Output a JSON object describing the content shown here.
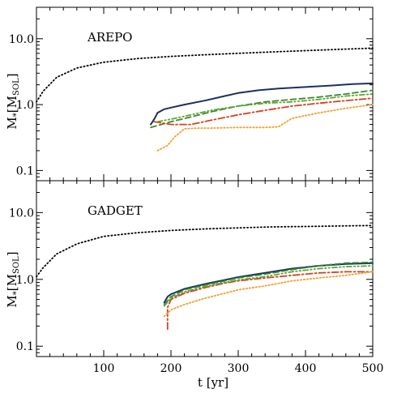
{
  "chart_data": [
    {
      "type": "line",
      "panel_label": "AREPO",
      "y_scale": "log",
      "ylim": [
        0.07,
        30
      ],
      "xlim": [
        0,
        500
      ],
      "y_ticks": [
        0.1,
        1.0,
        10.0
      ],
      "y_tick_labels": [
        "0.1",
        "1.0",
        "10.0"
      ],
      "x_ticks": [
        100,
        200,
        300,
        400,
        500
      ],
      "x_tick_labels": [
        "100",
        "200",
        "300",
        "400",
        "500"
      ],
      "show_x_tick_labels": false,
      "series": [
        {
          "style": "dotted-black",
          "color": "#000000",
          "dash": "1.2,3",
          "x": [
            0,
            10,
            30,
            60,
            100,
            150,
            200,
            250,
            300,
            350,
            400,
            450,
            500
          ],
          "y": [
            1.1,
            1.6,
            2.6,
            3.6,
            4.4,
            5.0,
            5.4,
            5.7,
            6.0,
            6.3,
            6.6,
            6.9,
            7.2
          ]
        },
        {
          "style": "solid-navy",
          "color": "#1c2f5e",
          "dash": "",
          "x": [
            170,
            175,
            180,
            190,
            200,
            220,
            250,
            280,
            300,
            330,
            360,
            400,
            440,
            470,
            500
          ],
          "y": [
            0.5,
            0.6,
            0.75,
            0.85,
            0.9,
            1.0,
            1.15,
            1.35,
            1.5,
            1.65,
            1.75,
            1.85,
            1.95,
            2.05,
            2.1
          ]
        },
        {
          "style": "dashed-green",
          "color": "#3a8a2e",
          "dash": "7,4",
          "x": [
            170,
            200,
            230,
            260,
            300,
            340,
            380,
            420,
            460,
            500
          ],
          "y": [
            0.45,
            0.55,
            0.65,
            0.78,
            0.95,
            1.1,
            1.2,
            1.3,
            1.45,
            1.65
          ]
        },
        {
          "style": "dashdot-red",
          "color": "#d6411e",
          "dash": "8,3,2,3",
          "x": [
            175,
            200,
            230,
            260,
            300,
            340,
            380,
            420,
            460,
            500
          ],
          "y": [
            0.55,
            0.5,
            0.5,
            0.58,
            0.7,
            0.82,
            0.95,
            1.05,
            1.15,
            1.25
          ]
        },
        {
          "style": "dashdotdot-green",
          "color": "#5ea636",
          "dash": "6,3,1.5,3,1.5,3",
          "x": [
            180,
            200,
            230,
            260,
            300,
            340,
            380,
            420,
            460,
            500
          ],
          "y": [
            0.55,
            0.6,
            0.7,
            0.82,
            0.95,
            1.05,
            1.1,
            1.2,
            1.35,
            1.45
          ]
        },
        {
          "style": "dotted-orange",
          "color": "#f2a02e",
          "dash": "1.5,2.5",
          "x": [
            180,
            195,
            205,
            220,
            240,
            260,
            300,
            340,
            360,
            380,
            420,
            460,
            500
          ],
          "y": [
            0.2,
            0.24,
            0.32,
            0.43,
            0.44,
            0.44,
            0.45,
            0.45,
            0.46,
            0.62,
            0.75,
            0.88,
            1.0
          ]
        }
      ]
    },
    {
      "type": "line",
      "panel_label": "GADGET",
      "y_scale": "log",
      "ylim": [
        0.07,
        30
      ],
      "xlim": [
        0,
        500
      ],
      "y_ticks": [
        0.1,
        1.0,
        10.0
      ],
      "y_tick_labels": [
        "0.1",
        "1.0",
        "10.0"
      ],
      "x_ticks": [
        100,
        200,
        300,
        400,
        500
      ],
      "x_tick_labels": [
        "100",
        "200",
        "300",
        "400",
        "500"
      ],
      "show_x_tick_labels": true,
      "xlabel": "t [yr]",
      "series": [
        {
          "style": "dotted-black",
          "color": "#000000",
          "dash": "1.2,3",
          "x": [
            0,
            10,
            30,
            60,
            100,
            150,
            200,
            250,
            300,
            350,
            400,
            450,
            500
          ],
          "y": [
            1.1,
            1.5,
            2.4,
            3.4,
            4.4,
            5.0,
            5.4,
            5.7,
            5.9,
            6.1,
            6.2,
            6.3,
            6.4
          ]
        },
        {
          "style": "solid-navy",
          "color": "#1c2f5e",
          "dash": "",
          "x": [
            190,
            195,
            200,
            220,
            250,
            280,
            300,
            340,
            380,
            420,
            460,
            500
          ],
          "y": [
            0.45,
            0.55,
            0.6,
            0.72,
            0.85,
            0.98,
            1.08,
            1.25,
            1.45,
            1.6,
            1.7,
            1.75
          ]
        },
        {
          "style": "dashed-green",
          "color": "#3a8a2e",
          "dash": "7,4",
          "x": [
            190,
            200,
            220,
            250,
            280,
            300,
            340,
            380,
            420,
            460,
            500
          ],
          "y": [
            0.42,
            0.55,
            0.7,
            0.82,
            0.95,
            1.05,
            1.2,
            1.4,
            1.6,
            1.75,
            1.8
          ]
        },
        {
          "style": "dashdot-red",
          "color": "#d6411e",
          "dash": "8,3,2,3",
          "x": [
            195,
            195,
            200,
            220,
            250,
            280,
            300,
            340,
            380,
            420,
            460,
            500
          ],
          "y": [
            0.18,
            0.38,
            0.5,
            0.62,
            0.75,
            0.88,
            0.95,
            1.05,
            1.15,
            1.25,
            1.3,
            1.3
          ]
        },
        {
          "style": "dashdotdot-green",
          "color": "#5ea636",
          "dash": "6,3,1.5,3,1.5,3",
          "x": [
            190,
            200,
            220,
            250,
            280,
            300,
            340,
            380,
            420,
            460,
            500
          ],
          "y": [
            0.4,
            0.52,
            0.65,
            0.78,
            0.9,
            0.98,
            1.1,
            1.3,
            1.45,
            1.55,
            1.6
          ]
        },
        {
          "style": "dotted-orange",
          "color": "#f2a02e",
          "dash": "1.5,2.5",
          "x": [
            190,
            200,
            220,
            250,
            280,
            300,
            340,
            380,
            420,
            460,
            500
          ],
          "y": [
            0.28,
            0.35,
            0.42,
            0.52,
            0.62,
            0.7,
            0.8,
            0.95,
            1.05,
            1.15,
            1.3
          ]
        }
      ]
    }
  ],
  "ylabel_main": "M",
  "ylabel_sub1": "*",
  "ylabel_bracket_open": "[M",
  "ylabel_sub2": "SOL",
  "ylabel_bracket_close": "]"
}
